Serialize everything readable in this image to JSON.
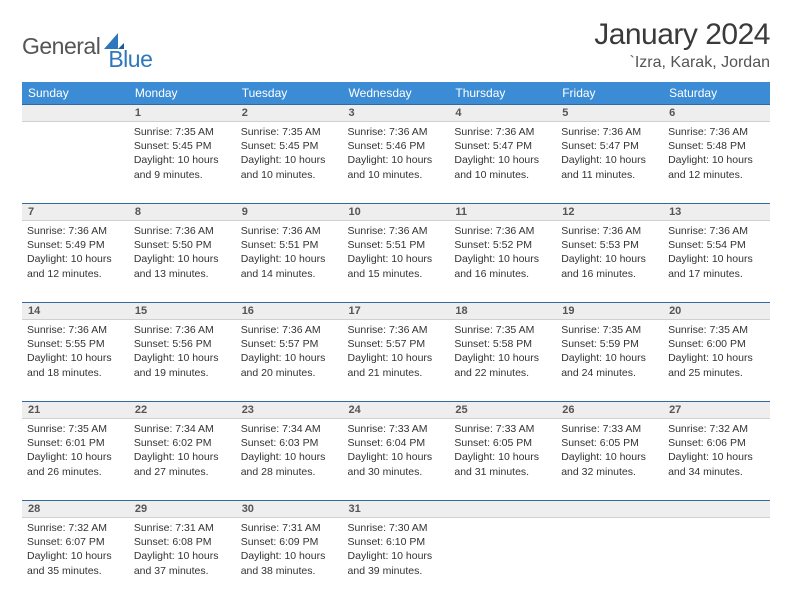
{
  "brand": {
    "part1": "General",
    "part2": "Blue"
  },
  "title": "January 2024",
  "location": "`Izra, Karak, Jordan",
  "columns": [
    "Sunday",
    "Monday",
    "Tuesday",
    "Wednesday",
    "Thursday",
    "Friday",
    "Saturday"
  ],
  "header_bg": "#3b8cd4",
  "daynum_bg": "#eeeeee",
  "border_color": "#316a9e",
  "text_color": "#333333",
  "weeks": [
    {
      "nums": [
        "",
        "1",
        "2",
        "3",
        "4",
        "5",
        "6"
      ],
      "cells": [
        null,
        {
          "sunrise": "Sunrise: 7:35 AM",
          "sunset": "Sunset: 5:45 PM",
          "day1": "Daylight: 10 hours",
          "day2": "and 9 minutes."
        },
        {
          "sunrise": "Sunrise: 7:35 AM",
          "sunset": "Sunset: 5:45 PM",
          "day1": "Daylight: 10 hours",
          "day2": "and 10 minutes."
        },
        {
          "sunrise": "Sunrise: 7:36 AM",
          "sunset": "Sunset: 5:46 PM",
          "day1": "Daylight: 10 hours",
          "day2": "and 10 minutes."
        },
        {
          "sunrise": "Sunrise: 7:36 AM",
          "sunset": "Sunset: 5:47 PM",
          "day1": "Daylight: 10 hours",
          "day2": "and 10 minutes."
        },
        {
          "sunrise": "Sunrise: 7:36 AM",
          "sunset": "Sunset: 5:47 PM",
          "day1": "Daylight: 10 hours",
          "day2": "and 11 minutes."
        },
        {
          "sunrise": "Sunrise: 7:36 AM",
          "sunset": "Sunset: 5:48 PM",
          "day1": "Daylight: 10 hours",
          "day2": "and 12 minutes."
        }
      ]
    },
    {
      "nums": [
        "7",
        "8",
        "9",
        "10",
        "11",
        "12",
        "13"
      ],
      "cells": [
        {
          "sunrise": "Sunrise: 7:36 AM",
          "sunset": "Sunset: 5:49 PM",
          "day1": "Daylight: 10 hours",
          "day2": "and 12 minutes."
        },
        {
          "sunrise": "Sunrise: 7:36 AM",
          "sunset": "Sunset: 5:50 PM",
          "day1": "Daylight: 10 hours",
          "day2": "and 13 minutes."
        },
        {
          "sunrise": "Sunrise: 7:36 AM",
          "sunset": "Sunset: 5:51 PM",
          "day1": "Daylight: 10 hours",
          "day2": "and 14 minutes."
        },
        {
          "sunrise": "Sunrise: 7:36 AM",
          "sunset": "Sunset: 5:51 PM",
          "day1": "Daylight: 10 hours",
          "day2": "and 15 minutes."
        },
        {
          "sunrise": "Sunrise: 7:36 AM",
          "sunset": "Sunset: 5:52 PM",
          "day1": "Daylight: 10 hours",
          "day2": "and 16 minutes."
        },
        {
          "sunrise": "Sunrise: 7:36 AM",
          "sunset": "Sunset: 5:53 PM",
          "day1": "Daylight: 10 hours",
          "day2": "and 16 minutes."
        },
        {
          "sunrise": "Sunrise: 7:36 AM",
          "sunset": "Sunset: 5:54 PM",
          "day1": "Daylight: 10 hours",
          "day2": "and 17 minutes."
        }
      ]
    },
    {
      "nums": [
        "14",
        "15",
        "16",
        "17",
        "18",
        "19",
        "20"
      ],
      "cells": [
        {
          "sunrise": "Sunrise: 7:36 AM",
          "sunset": "Sunset: 5:55 PM",
          "day1": "Daylight: 10 hours",
          "day2": "and 18 minutes."
        },
        {
          "sunrise": "Sunrise: 7:36 AM",
          "sunset": "Sunset: 5:56 PM",
          "day1": "Daylight: 10 hours",
          "day2": "and 19 minutes."
        },
        {
          "sunrise": "Sunrise: 7:36 AM",
          "sunset": "Sunset: 5:57 PM",
          "day1": "Daylight: 10 hours",
          "day2": "and 20 minutes."
        },
        {
          "sunrise": "Sunrise: 7:36 AM",
          "sunset": "Sunset: 5:57 PM",
          "day1": "Daylight: 10 hours",
          "day2": "and 21 minutes."
        },
        {
          "sunrise": "Sunrise: 7:35 AM",
          "sunset": "Sunset: 5:58 PM",
          "day1": "Daylight: 10 hours",
          "day2": "and 22 minutes."
        },
        {
          "sunrise": "Sunrise: 7:35 AM",
          "sunset": "Sunset: 5:59 PM",
          "day1": "Daylight: 10 hours",
          "day2": "and 24 minutes."
        },
        {
          "sunrise": "Sunrise: 7:35 AM",
          "sunset": "Sunset: 6:00 PM",
          "day1": "Daylight: 10 hours",
          "day2": "and 25 minutes."
        }
      ]
    },
    {
      "nums": [
        "21",
        "22",
        "23",
        "24",
        "25",
        "26",
        "27"
      ],
      "cells": [
        {
          "sunrise": "Sunrise: 7:35 AM",
          "sunset": "Sunset: 6:01 PM",
          "day1": "Daylight: 10 hours",
          "day2": "and 26 minutes."
        },
        {
          "sunrise": "Sunrise: 7:34 AM",
          "sunset": "Sunset: 6:02 PM",
          "day1": "Daylight: 10 hours",
          "day2": "and 27 minutes."
        },
        {
          "sunrise": "Sunrise: 7:34 AM",
          "sunset": "Sunset: 6:03 PM",
          "day1": "Daylight: 10 hours",
          "day2": "and 28 minutes."
        },
        {
          "sunrise": "Sunrise: 7:33 AM",
          "sunset": "Sunset: 6:04 PM",
          "day1": "Daylight: 10 hours",
          "day2": "and 30 minutes."
        },
        {
          "sunrise": "Sunrise: 7:33 AM",
          "sunset": "Sunset: 6:05 PM",
          "day1": "Daylight: 10 hours",
          "day2": "and 31 minutes."
        },
        {
          "sunrise": "Sunrise: 7:33 AM",
          "sunset": "Sunset: 6:05 PM",
          "day1": "Daylight: 10 hours",
          "day2": "and 32 minutes."
        },
        {
          "sunrise": "Sunrise: 7:32 AM",
          "sunset": "Sunset: 6:06 PM",
          "day1": "Daylight: 10 hours",
          "day2": "and 34 minutes."
        }
      ]
    },
    {
      "nums": [
        "28",
        "29",
        "30",
        "31",
        "",
        "",
        ""
      ],
      "cells": [
        {
          "sunrise": "Sunrise: 7:32 AM",
          "sunset": "Sunset: 6:07 PM",
          "day1": "Daylight: 10 hours",
          "day2": "and 35 minutes."
        },
        {
          "sunrise": "Sunrise: 7:31 AM",
          "sunset": "Sunset: 6:08 PM",
          "day1": "Daylight: 10 hours",
          "day2": "and 37 minutes."
        },
        {
          "sunrise": "Sunrise: 7:31 AM",
          "sunset": "Sunset: 6:09 PM",
          "day1": "Daylight: 10 hours",
          "day2": "and 38 minutes."
        },
        {
          "sunrise": "Sunrise: 7:30 AM",
          "sunset": "Sunset: 6:10 PM",
          "day1": "Daylight: 10 hours",
          "day2": "and 39 minutes."
        },
        null,
        null,
        null
      ]
    }
  ]
}
